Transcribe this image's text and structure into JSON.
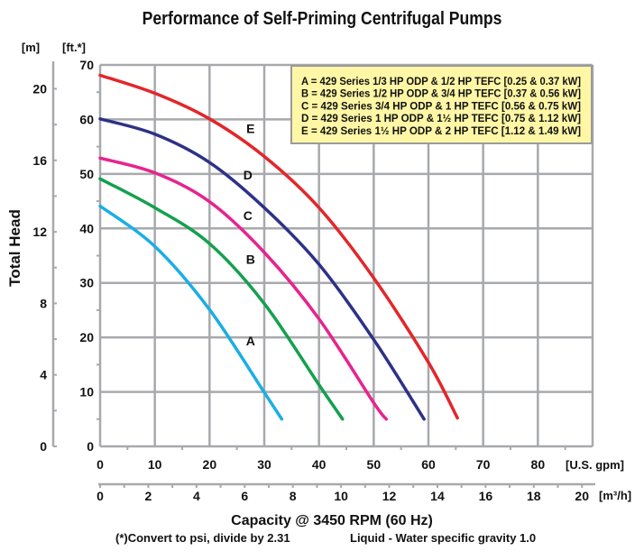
{
  "chart_data": {
    "type": "line",
    "title": "Performance of Self-Priming Centrifugal Pumps",
    "xlabel": "Capacity @ 3450 RPM (60 Hz)",
    "ylabel": "Total Head",
    "footnote_left": "(*)Convert to psi, divide by 2.31",
    "footnote_right": "Liquid - Water specific gravity 1.0",
    "x_unit_primary": "[U.S. gpm]",
    "x_unit_secondary": "[m³/h]",
    "y_unit_primary": "[ft.*]",
    "y_unit_secondary": "[m]",
    "xlim": [
      0,
      90
    ],
    "ylim": [
      0,
      70
    ],
    "x_ticks": [
      "0",
      "10",
      "20",
      "30",
      "40",
      "50",
      "60",
      "70",
      "80"
    ],
    "x2_ticks": [
      "0",
      "2",
      "4",
      "6",
      "8",
      "10",
      "12",
      "14",
      "16",
      "18",
      "20"
    ],
    "y_ticks": [
      "0",
      "10",
      "20",
      "30",
      "40",
      "50",
      "60",
      "70"
    ],
    "y2_ticks": [
      "0",
      "4",
      "8",
      "12",
      "16",
      "20"
    ],
    "grid": true,
    "legend_placement": "top-right",
    "legend": [
      "A = 429 Series 1/3 HP ODP & 1/2 HP TEFC [0.25 & 0.37 kW]",
      "B = 429 Series 1/2 HP ODP & 3/4 HP TEFC [0.37 & 0.56 kW]",
      "C = 429 Series 3/4 HP ODP & 1 HP TEFC [0.56 & 0.75 kW]",
      "D = 429 Series 1 HP ODP & 1½ HP TEFC [0.75 & 1.12 kW]",
      "E = 429 Series 1½ HP ODP & 2 HP TEFC [1.12 & 1.49 kW]"
    ],
    "series": [
      {
        "name": "A",
        "color": "#1aaee5",
        "x": [
          0,
          10,
          20,
          30,
          33.2
        ],
        "y": [
          44.1,
          36.7,
          25.1,
          9.9,
          5.0
        ]
      },
      {
        "name": "B",
        "color": "#14a04e",
        "x": [
          0,
          10,
          20,
          30,
          40,
          44.3
        ],
        "y": [
          49.1,
          43.8,
          37.2,
          26.2,
          11.3,
          5.0
        ]
      },
      {
        "name": "C",
        "color": "#e6248e",
        "x": [
          0,
          10,
          20,
          30,
          40,
          50,
          52.3
        ],
        "y": [
          52.9,
          50.2,
          44.9,
          35.6,
          23.4,
          8.0,
          5.0
        ]
      },
      {
        "name": "D",
        "color": "#2e3187",
        "x": [
          0,
          10,
          20,
          30,
          40,
          50,
          59.2
        ],
        "y": [
          60.1,
          57.3,
          52.1,
          43.8,
          33.4,
          19.6,
          5.0
        ]
      },
      {
        "name": "E",
        "color": "#e3262a",
        "x": [
          0,
          10,
          20,
          30,
          40,
          50,
          60,
          65.3
        ],
        "y": [
          68.1,
          64.8,
          60.1,
          53.2,
          43.8,
          30.9,
          15.4,
          5.2
        ]
      }
    ],
    "curve_labels": [
      {
        "text": "A",
        "x": 27.5,
        "y": 18.5
      },
      {
        "text": "B",
        "x": 27.5,
        "y": 33.5
      },
      {
        "text": "C",
        "x": 27,
        "y": 41.5
      },
      {
        "text": "D",
        "x": 27,
        "y": 49
      },
      {
        "text": "E",
        "x": 27.5,
        "y": 57.5
      }
    ],
    "colors": {
      "grid": "#a7a9ac",
      "legend_bg": "#fff7a6",
      "legend_border": "#9a9a9a"
    }
  }
}
